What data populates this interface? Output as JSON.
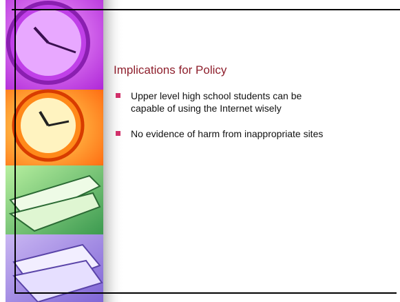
{
  "slide": {
    "title": "Implications for Policy",
    "bullets": [
      "Upper level high school students can be capable of using the Internet wisely",
      "No evidence of harm from inappropriate sites"
    ]
  }
}
